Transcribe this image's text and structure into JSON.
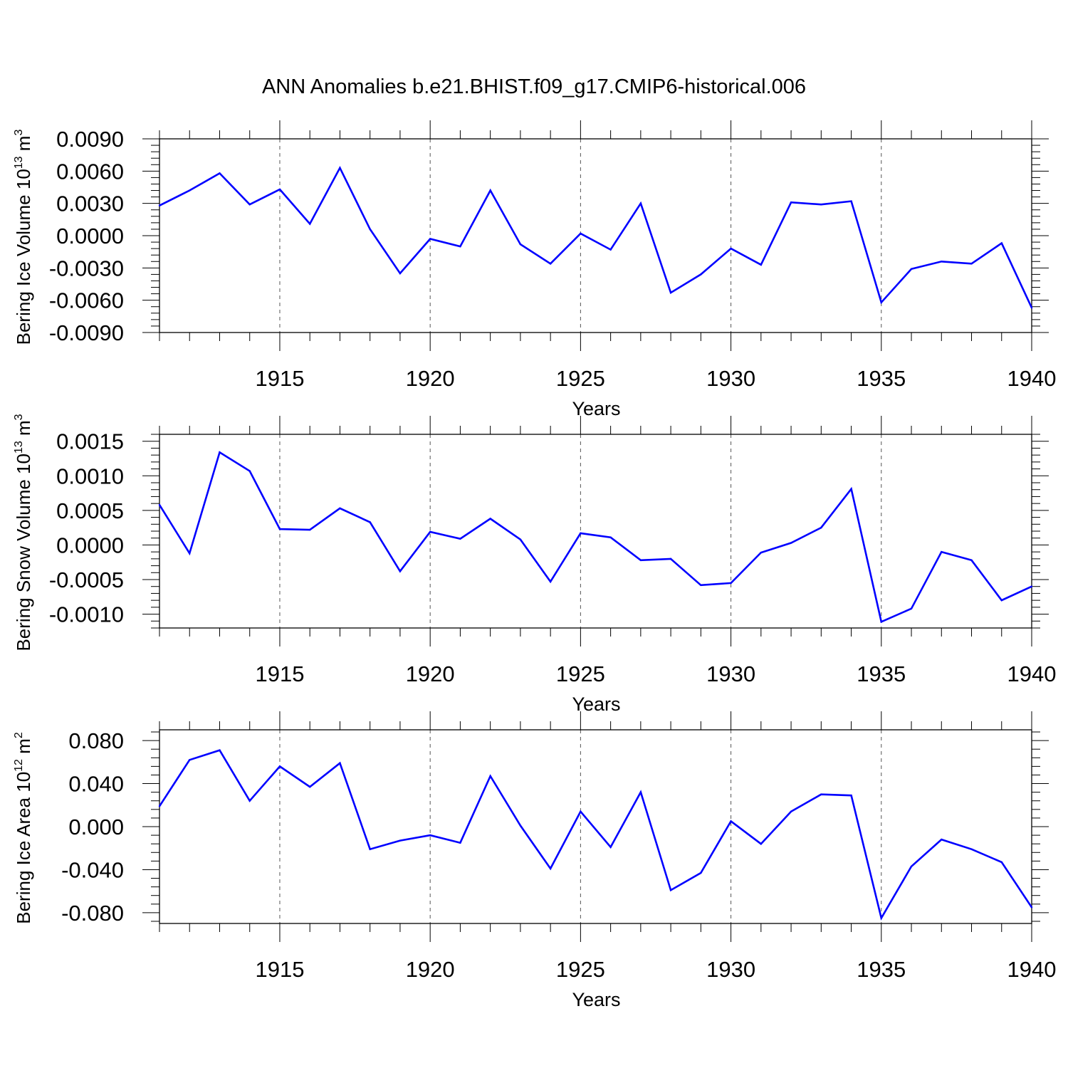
{
  "title": "ANN Anomalies b.e21.BHIST.f09_g17.CMIP6-historical.006",
  "colors": {
    "line": "#0000ff",
    "axis": "#000000",
    "grid": "#555555"
  },
  "chart_data": [
    {
      "type": "line",
      "ylabel": {
        "text": "Bering Ice Volume 10",
        "exp": "13",
        "unit": " m",
        "unit_exp": "3"
      },
      "xlabel": "Years",
      "xlim": [
        1911,
        1940
      ],
      "ylim": [
        -0.009,
        0.009
      ],
      "y_ticks": [
        "0.0090",
        "0.0060",
        "0.0030",
        "0.0000",
        "-0.0030",
        "-0.0060",
        "-0.0090"
      ],
      "x_ticks": [
        "1915",
        "1920",
        "1925",
        "1930",
        "1935",
        "1940"
      ],
      "x_gridlines": [
        1915,
        1920,
        1925,
        1930,
        1935
      ],
      "x": [
        1911,
        1912,
        1913,
        1914,
        1915,
        1916,
        1917,
        1918,
        1919,
        1920,
        1921,
        1922,
        1923,
        1924,
        1925,
        1926,
        1927,
        1928,
        1929,
        1930,
        1931,
        1932,
        1933,
        1934,
        1935,
        1936,
        1937,
        1938,
        1939,
        1940
      ],
      "series": [
        {
          "values": [
            0.0028,
            0.0042,
            0.0058,
            0.0029,
            0.0043,
            0.0011,
            0.0063,
            0.0006,
            -0.0035,
            -0.0003,
            -0.001,
            0.0042,
            -0.0008,
            -0.0026,
            0.0002,
            -0.0013,
            0.003,
            -0.0053,
            -0.0036,
            -0.0012,
            -0.0027,
            0.0031,
            0.0029,
            0.0032,
            -0.0062,
            -0.0031,
            -0.0024,
            -0.0026,
            -0.0007,
            -0.0067
          ]
        }
      ]
    },
    {
      "type": "line",
      "ylabel": {
        "text": "Bering Snow Volume 10",
        "exp": "13",
        "unit": " m",
        "unit_exp": "3"
      },
      "xlabel": "Years",
      "xlim": [
        1911,
        1940
      ],
      "ylim": [
        -0.0012,
        0.0016
      ],
      "y_ticks": [
        "0.0015",
        "0.0010",
        "0.0005",
        "0.0000",
        "-0.0005",
        "-0.0010"
      ],
      "x_ticks": [
        "1915",
        "1920",
        "1925",
        "1930",
        "1935",
        "1940"
      ],
      "x_gridlines": [
        1915,
        1920,
        1925,
        1930,
        1935
      ],
      "x": [
        1911,
        1912,
        1913,
        1914,
        1915,
        1916,
        1917,
        1918,
        1919,
        1920,
        1921,
        1922,
        1923,
        1924,
        1925,
        1926,
        1927,
        1928,
        1929,
        1930,
        1931,
        1932,
        1933,
        1934,
        1935,
        1936,
        1937,
        1938,
        1939,
        1940
      ],
      "series": [
        {
          "values": [
            0.00058,
            -0.00012,
            0.00134,
            0.00107,
            0.00023,
            0.00022,
            0.00053,
            0.00033,
            -0.00038,
            0.00019,
            9e-05,
            0.00038,
            8e-05,
            -0.00053,
            0.00017,
            0.00011,
            -0.00022,
            -0.0002,
            -0.00058,
            -0.00055,
            -0.00011,
            3e-05,
            0.00025,
            0.00081,
            -0.00111,
            -0.00092,
            -0.0001,
            -0.00022,
            -0.0008,
            -0.0006
          ]
        }
      ]
    },
    {
      "type": "line",
      "ylabel": {
        "text": "Bering Ice Area 10",
        "exp": "12",
        "unit": " m",
        "unit_exp": "2"
      },
      "xlabel": "Years",
      "xlim": [
        1911,
        1940
      ],
      "ylim": [
        -0.09,
        0.09
      ],
      "y_ticks": [
        "0.080",
        "0.040",
        "0.000",
        "-0.040",
        "-0.080"
      ],
      "x_ticks": [
        "1915",
        "1920",
        "1925",
        "1930",
        "1935",
        "1940"
      ],
      "x_gridlines": [
        1915,
        1920,
        1925,
        1930,
        1935
      ],
      "x": [
        1911,
        1912,
        1913,
        1914,
        1915,
        1916,
        1917,
        1918,
        1919,
        1920,
        1921,
        1922,
        1923,
        1924,
        1925,
        1926,
        1927,
        1928,
        1929,
        1930,
        1931,
        1932,
        1933,
        1934,
        1935,
        1936,
        1937,
        1938,
        1939,
        1940
      ],
      "series": [
        {
          "values": [
            0.019,
            0.062,
            0.071,
            0.024,
            0.056,
            0.037,
            0.059,
            -0.021,
            -0.013,
            -0.008,
            -0.015,
            0.047,
            0.001,
            -0.039,
            0.014,
            -0.019,
            0.032,
            -0.059,
            -0.043,
            0.005,
            -0.016,
            0.014,
            0.03,
            0.029,
            -0.085,
            -0.037,
            -0.012,
            -0.021,
            -0.033,
            -0.075
          ]
        }
      ]
    }
  ]
}
